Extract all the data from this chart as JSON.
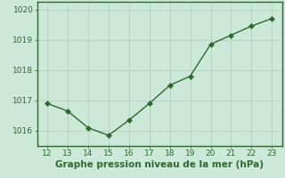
{
  "x": [
    12,
    13,
    14,
    15,
    16,
    17,
    18,
    19,
    20,
    21,
    22,
    23
  ],
  "y": [
    1016.9,
    1016.65,
    1016.1,
    1015.85,
    1016.35,
    1016.9,
    1017.5,
    1017.8,
    1018.85,
    1019.15,
    1019.45,
    1019.7
  ],
  "line_color": "#2d6a2d",
  "marker_color": "#2d6a2d",
  "bg_color": "#cce8d8",
  "grid_color": "#aaccb8",
  "border_color": "#336633",
  "xlabel": "Graphe pression niveau de la mer (hPa)",
  "xlabel_color": "#2d6a2d",
  "tick_color": "#2d6a2d",
  "ylim": [
    1015.5,
    1020.25
  ],
  "xlim": [
    11.5,
    23.5
  ],
  "yticks": [
    1016,
    1017,
    1018,
    1019,
    1020
  ],
  "xticks": [
    12,
    13,
    14,
    15,
    16,
    17,
    18,
    19,
    20,
    21,
    22,
    23
  ],
  "tick_fontsize": 6.5,
  "xlabel_fontsize": 7.5,
  "marker_size": 3,
  "line_width": 1.0
}
